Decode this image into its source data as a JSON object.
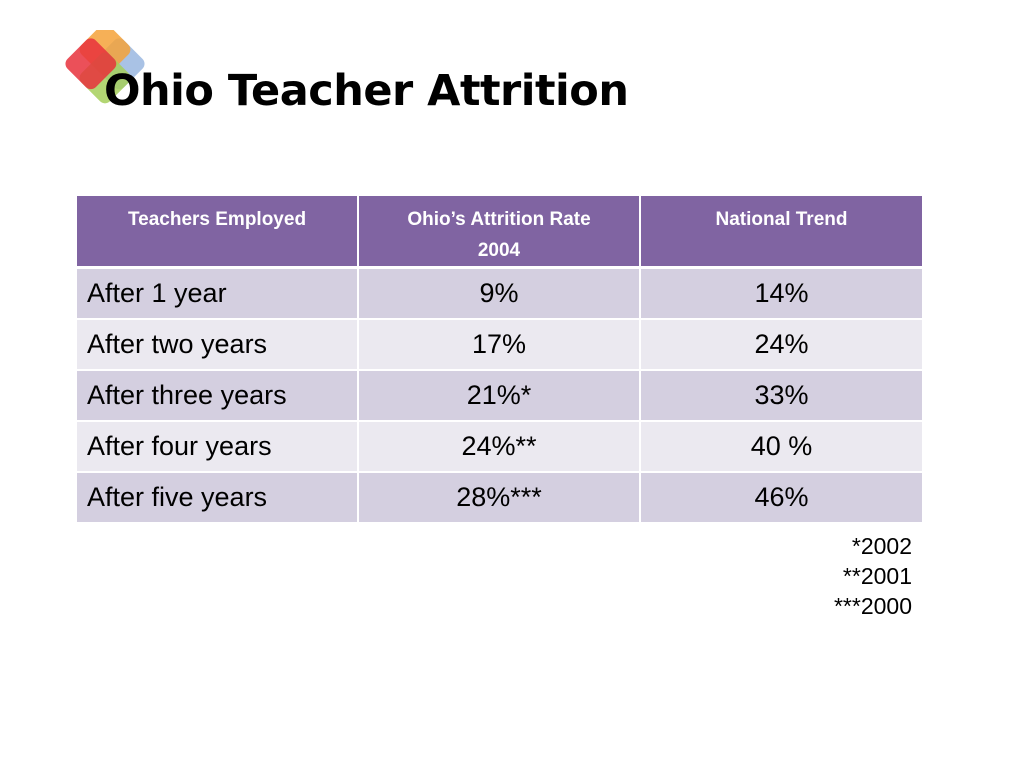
{
  "slide": {
    "title": "Ohio Teacher Attrition"
  },
  "logo": {
    "icon": "overlapping-colored-squares-logo",
    "colors": [
      "#f4a23a",
      "#e8313c",
      "#9ab7e0",
      "#a6cf5a"
    ]
  },
  "table": {
    "headers": [
      {
        "lines": [
          "Teachers Employed"
        ]
      },
      {
        "lines": [
          "Ohio’s Attrition Rate",
          "2004"
        ]
      },
      {
        "lines": [
          "National Trend"
        ]
      }
    ],
    "rows": [
      {
        "label": "After 1 year",
        "ohio": "9%",
        "national": "14%"
      },
      {
        "label": "After two years",
        "ohio": "17%",
        "national": "24%"
      },
      {
        "label": "After three years",
        "ohio": "21%*",
        "national": "33%"
      },
      {
        "label": "After four years",
        "ohio": "24%**",
        "national": "40 %"
      },
      {
        "label": "After five years",
        "ohio": "28%***",
        "national": "46%"
      }
    ]
  },
  "footnotes": [
    "*2002",
    "**2001",
    "***2000"
  ],
  "colors": {
    "header_bg": "#8064a2",
    "row_odd_bg": "#d4cfe0",
    "row_even_bg": "#ebe9f0"
  }
}
